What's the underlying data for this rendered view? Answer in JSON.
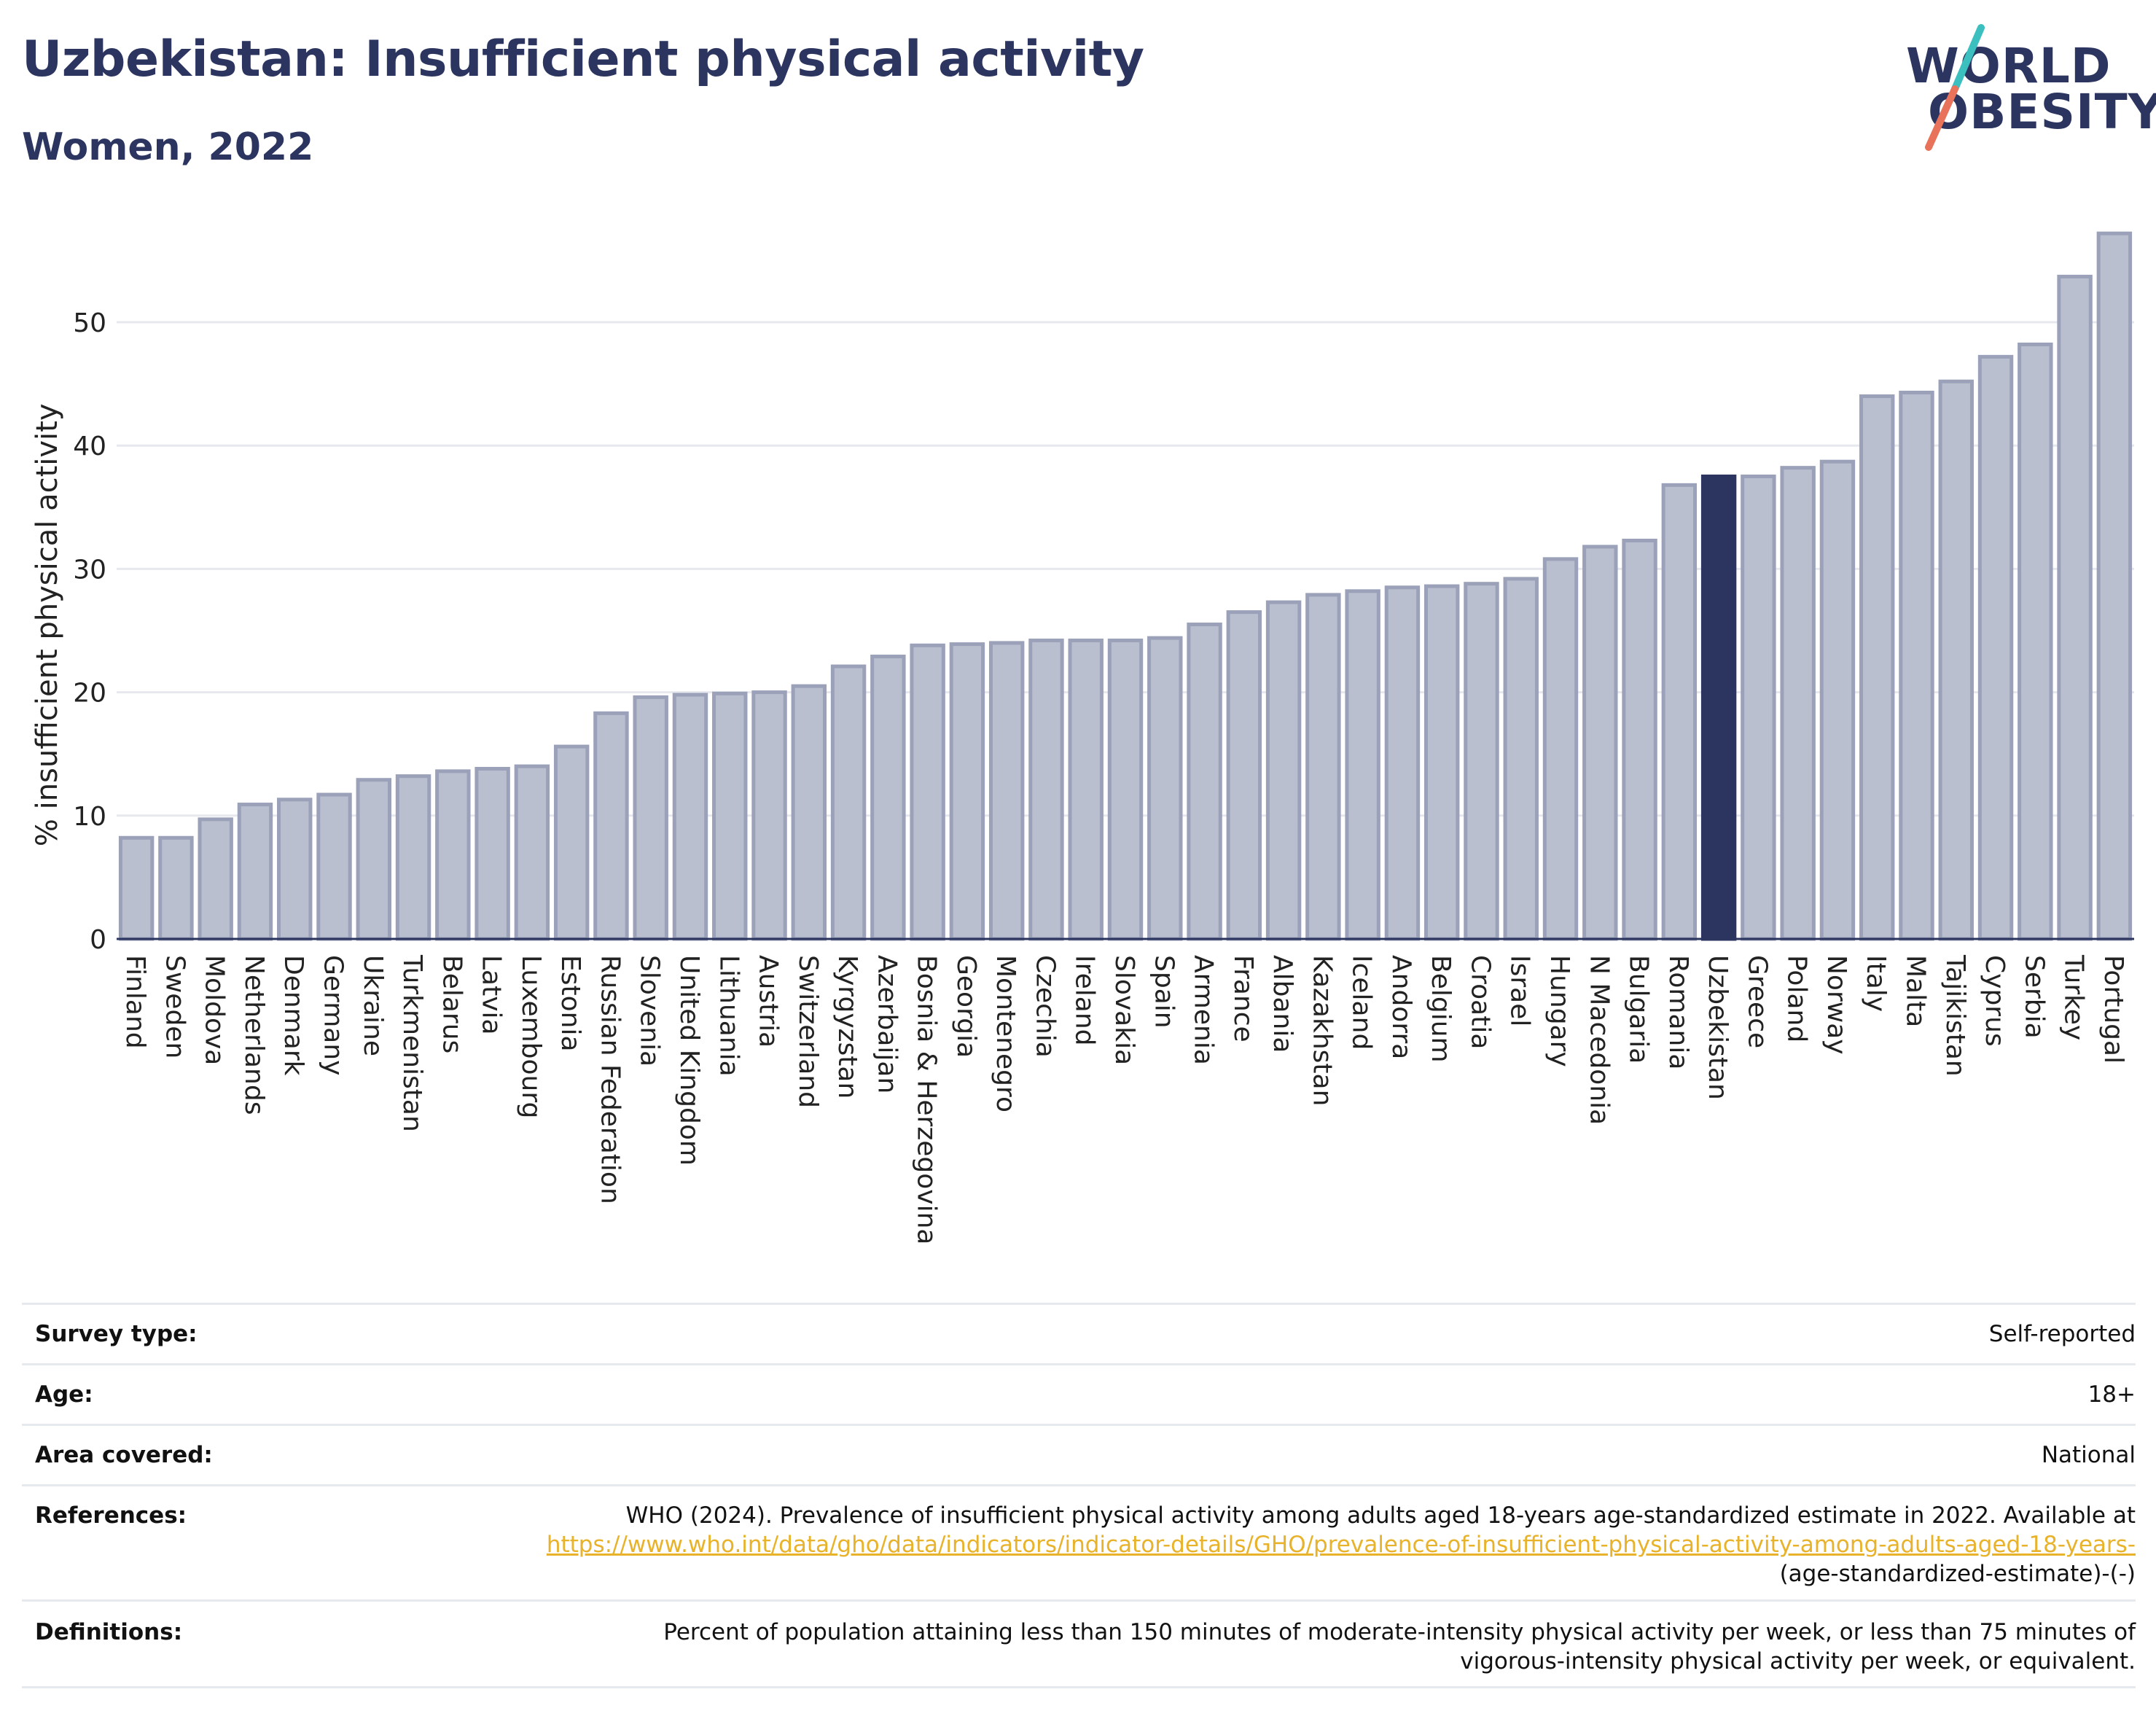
{
  "header": {
    "title": "Uzbekistan: Insufficient physical activity",
    "subtitle": "Women, 2022"
  },
  "logo": {
    "line1": "WORLD",
    "line2": "OBESITY",
    "colors": {
      "text": "#2b3560",
      "slash_teal": "#3bbfbf",
      "slash_coral": "#e8735a"
    }
  },
  "chart_data": {
    "type": "bar",
    "ylabel": "% insufficient physical activity",
    "xlabel": "",
    "ylim": [
      0,
      58
    ],
    "yticks": [
      0,
      10,
      20,
      30,
      40,
      50
    ],
    "grid": true,
    "highlight": "Uzbekistan",
    "colors": {
      "bar": "#b9bfcf",
      "bar_border": "#9aa1b8",
      "highlight": "#2b3560"
    },
    "categories": [
      "Finland",
      "Sweden",
      "Moldova",
      "Netherlands",
      "Denmark",
      "Germany",
      "Ukraine",
      "Turkmenistan",
      "Belarus",
      "Latvia",
      "Luxembourg",
      "Estonia",
      "Russian Federation",
      "Slovenia",
      "United Kingdom",
      "Lithuania",
      "Austria",
      "Switzerland",
      "Kyrgyzstan",
      "Azerbaijan",
      "Bosnia & Herzegovina",
      "Georgia",
      "Montenegro",
      "Czechia",
      "Ireland",
      "Slovakia",
      "Spain",
      "Armenia",
      "France",
      "Albania",
      "Kazakhstan",
      "Iceland",
      "Andorra",
      "Belgium",
      "Croatia",
      "Israel",
      "Hungary",
      "N Macedonia",
      "Bulgaria",
      "Romania",
      "Uzbekistan",
      "Greece",
      "Poland",
      "Norway",
      "Italy",
      "Malta",
      "Tajikistan",
      "Cyprus",
      "Serbia",
      "Turkey",
      "Portugal"
    ],
    "values": [
      8.2,
      8.2,
      9.7,
      10.9,
      11.3,
      11.7,
      12.9,
      13.2,
      13.6,
      13.8,
      14.0,
      15.6,
      18.3,
      19.6,
      19.8,
      19.9,
      20.0,
      20.5,
      22.1,
      22.9,
      23.8,
      23.9,
      24.0,
      24.2,
      24.2,
      24.2,
      24.4,
      25.5,
      26.5,
      27.3,
      27.9,
      28.2,
      28.5,
      28.6,
      28.8,
      29.2,
      30.8,
      31.8,
      32.3,
      36.8,
      37.5,
      37.5,
      38.2,
      38.7,
      44.0,
      44.3,
      45.2,
      47.2,
      48.2,
      53.7,
      57.2
    ]
  },
  "meta": {
    "rows": [
      {
        "label": "Survey type:",
        "value": "Self-reported"
      },
      {
        "label": "Age:",
        "value": "18+"
      },
      {
        "label": "Area covered:",
        "value": "National"
      }
    ],
    "references": {
      "label": "References:",
      "text_before": "WHO (2024). Prevalence of insufficient physical activity among adults aged 18-years age-standardized estimate in 2022. Available at",
      "link_text": "https://www.who.int/data/gho/data/indicators/indicator-details/GHO/prevalence-of-insufficient-physical-activity-among-adults-aged-18-years-",
      "text_after": "(age-standardized-estimate)-(-)"
    },
    "definitions": {
      "label": "Definitions:",
      "value": "Percent of population attaining less than 150 minutes of moderate-intensity physical activity per week, or less than 75 minutes of vigorous-intensity physical activity per week, or equivalent."
    }
  }
}
